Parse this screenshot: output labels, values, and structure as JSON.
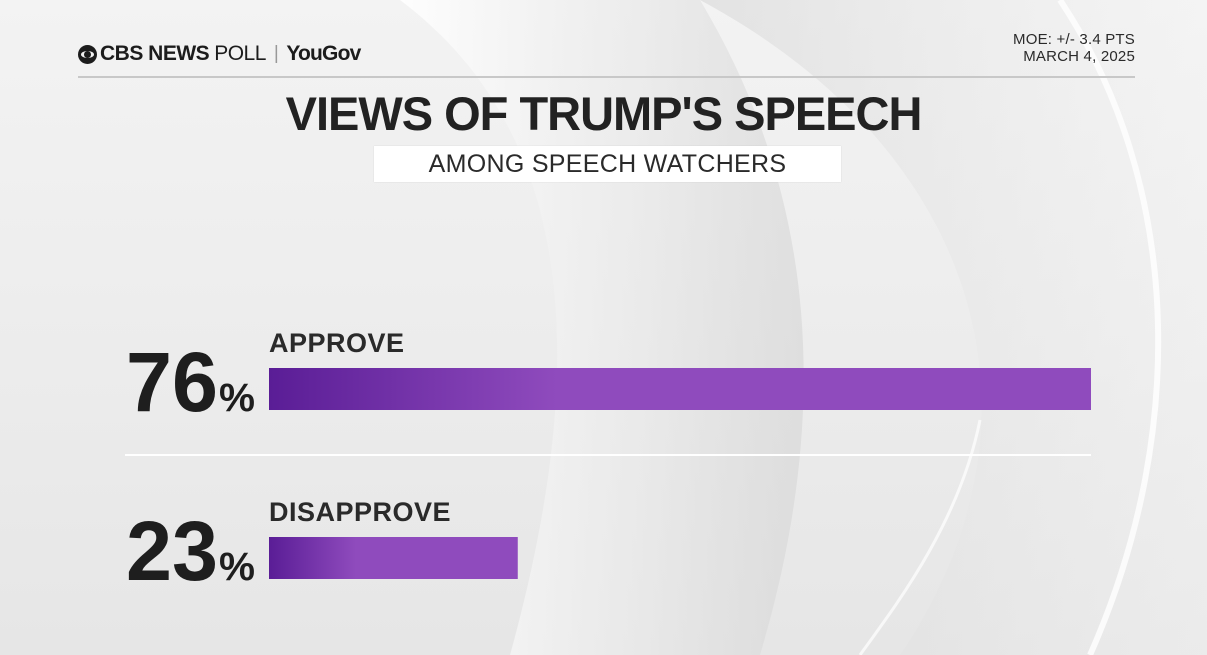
{
  "header": {
    "brand_cbs": "CBS NEWS",
    "brand_poll": "POLL",
    "brand_yougov": "YouGov",
    "moe": "MOE: +/- 3.4 PTS",
    "date": "MARCH 4, 2025"
  },
  "chart_data": {
    "type": "bar",
    "title": "VIEWS OF TRUMP'S SPEECH",
    "subtitle": "AMONG SPEECH WATCHERS",
    "categories": [
      "APPROVE",
      "DISAPPROVE"
    ],
    "values": [
      76,
      23
    ],
    "value_labels": [
      "76",
      "23"
    ],
    "unit": "%",
    "xlim": [
      0,
      76
    ],
    "orientation": "horizontal",
    "grid": false,
    "legend": "none",
    "bar_color": "#8f4bbd",
    "bar_color_dark": "#5a1d96"
  }
}
